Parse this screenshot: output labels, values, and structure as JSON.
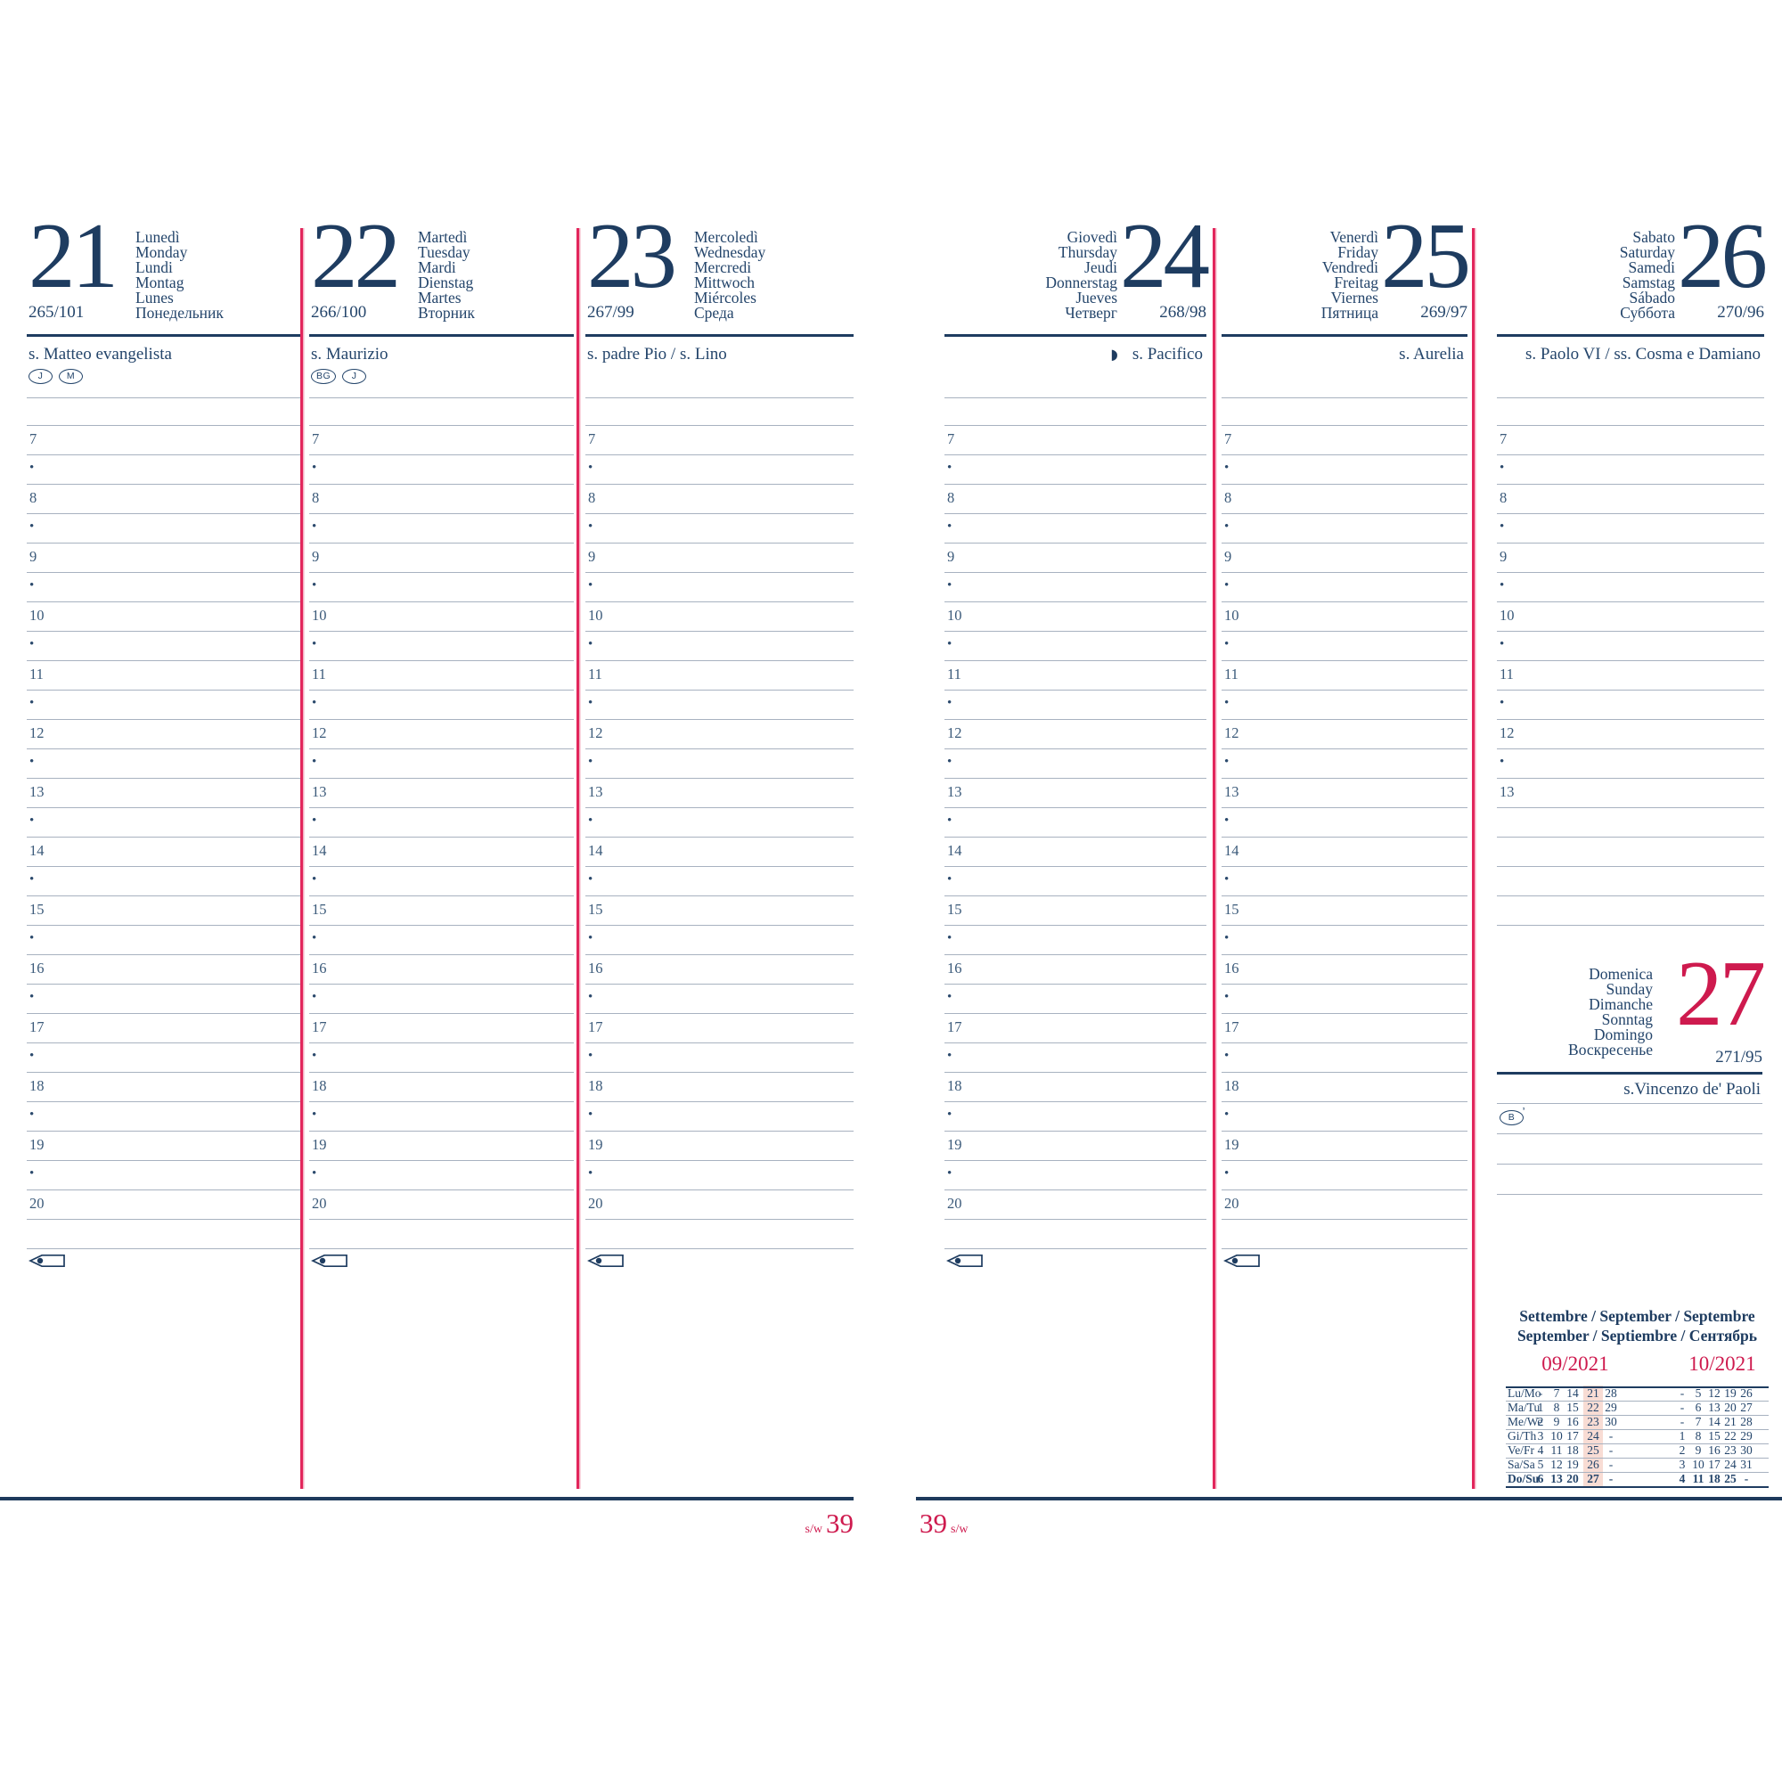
{
  "diary": {
    "week_prefix": "s/w",
    "week_number": "39",
    "days": [
      {
        "number": "21",
        "names": [
          "Lunedì",
          "Monday",
          "Lundi",
          "Montag",
          "Lunes",
          "Понедельник"
        ],
        "day_count": "265/101",
        "saint": "s. Matteo evangelista",
        "badges": [
          "J",
          "M"
        ],
        "hour_start": 7,
        "hour_end": 20
      },
      {
        "number": "22",
        "names": [
          "Martedì",
          "Tuesday",
          "Mardi",
          "Dienstag",
          "Martes",
          "Вторник"
        ],
        "day_count": "266/100",
        "saint": "s. Maurizio",
        "badges": [
          "BG",
          "J"
        ],
        "hour_start": 7,
        "hour_end": 20
      },
      {
        "number": "23",
        "names": [
          "Mercoledì",
          "Wednesday",
          "Mercredi",
          "Mittwoch",
          "Miércoles",
          "Среда"
        ],
        "day_count": "267/99",
        "saint": "s. padre Pio / s. Lino",
        "badges": [],
        "hour_start": 7,
        "hour_end": 20
      },
      {
        "number": "24",
        "names": [
          "Giovedì",
          "Thursday",
          "Jeudi",
          "Donnerstag",
          "Jueves",
          "Четверг"
        ],
        "day_count": "268/98",
        "saint": "s. Pacifico",
        "moon": true,
        "badges": [],
        "hour_start": 7,
        "hour_end": 20
      },
      {
        "number": "25",
        "names": [
          "Venerdì",
          "Friday",
          "Vendredi",
          "Freitag",
          "Viernes",
          "Пятница"
        ],
        "day_count": "269/97",
        "saint": "s. Aurelia",
        "badges": [],
        "hour_start": 7,
        "hour_end": 20
      },
      {
        "number": "26",
        "names": [
          "Sabato",
          "Saturday",
          "Samedi",
          "Samstag",
          "Sábado",
          "Суббота"
        ],
        "day_count": "270/96",
        "saint": "s. Paolo VI / ss. Cosma e Damiano",
        "badges": [],
        "hour_start": 7,
        "hour_end": 13,
        "extra_rows": 4
      }
    ],
    "half_hour_marker": "•",
    "sunday": {
      "number": "27",
      "names": [
        "Domenica",
        "Sunday",
        "Dimanche",
        "Sonntag",
        "Domingo",
        "Воскресенье"
      ],
      "day_count": "271/95",
      "saint": "s.Vincenzo de' Paoli",
      "badge": "B"
    },
    "calendar": {
      "title1": "Settembre / September / Septembre",
      "title2": "September / Septiembre / Сентябрь",
      "month_left": "09/2021",
      "month_right": "10/2021",
      "highlight_index": 3,
      "rows": [
        {
          "label": "Lu/Mo",
          "left": [
            "-",
            "7",
            "14",
            "21",
            "28"
          ],
          "right": [
            "-",
            "5",
            "12",
            "19",
            "26"
          ],
          "bold": false
        },
        {
          "label": "Ma/Tu",
          "left": [
            "1",
            "8",
            "15",
            "22",
            "29"
          ],
          "right": [
            "-",
            "6",
            "13",
            "20",
            "27"
          ],
          "bold": false
        },
        {
          "label": "Me/We",
          "left": [
            "2",
            "9",
            "16",
            "23",
            "30"
          ],
          "right": [
            "-",
            "7",
            "14",
            "21",
            "28"
          ],
          "bold": false
        },
        {
          "label": "Gi/Th",
          "left": [
            "3",
            "10",
            "17",
            "24",
            "-"
          ],
          "right": [
            "1",
            "8",
            "15",
            "22",
            "29"
          ],
          "bold": false
        },
        {
          "label": "Ve/Fr",
          "left": [
            "4",
            "11",
            "18",
            "25",
            "-"
          ],
          "right": [
            "2",
            "9",
            "16",
            "23",
            "30"
          ],
          "bold": false
        },
        {
          "label": "Sa/Sa",
          "left": [
            "5",
            "12",
            "19",
            "26",
            "-"
          ],
          "right": [
            "3",
            "10",
            "17",
            "24",
            "31"
          ],
          "bold": false
        },
        {
          "label": "Do/Su",
          "left": [
            "6",
            "13",
            "20",
            "27",
            "-"
          ],
          "right": [
            "4",
            "11",
            "18",
            "25",
            "-"
          ],
          "bold": true
        }
      ]
    },
    "colors": {
      "navy": "#1e3c60",
      "red_text": "#ce1a4e",
      "red_line": "#e2265c",
      "ruled_line": "#a8b2c0",
      "week_highlight": "#f8dcd4"
    }
  }
}
